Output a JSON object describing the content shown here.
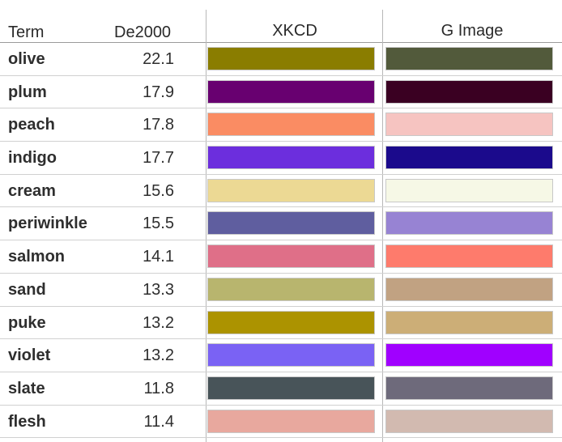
{
  "headers": {
    "term": "Term",
    "de2000": "De2000",
    "xkcd": "XKCD",
    "g_image": "G Image"
  },
  "rows": [
    {
      "term": "olive",
      "de2000": "22.1",
      "xkcd_color": "#8a7d00",
      "g_image_color": "#525a3b"
    },
    {
      "term": "plum",
      "de2000": "17.9",
      "xkcd_color": "#680070",
      "g_image_color": "#3a0022"
    },
    {
      "term": "peach",
      "de2000": "17.8",
      "xkcd_color": "#fa8c63",
      "g_image_color": "#f6c4c1"
    },
    {
      "term": "indigo",
      "de2000": "17.7",
      "xkcd_color": "#6c2edd",
      "g_image_color": "#1b0a8c"
    },
    {
      "term": "cream",
      "de2000": "15.6",
      "xkcd_color": "#ecd994",
      "g_image_color": "#f6f8e6"
    },
    {
      "term": "periwinkle",
      "de2000": "15.5",
      "xkcd_color": "#5f5e9f",
      "g_image_color": "#9783d3"
    },
    {
      "term": "salmon",
      "de2000": "14.1",
      "xkcd_color": "#df6f88",
      "g_image_color": "#fe7b6c"
    },
    {
      "term": "sand",
      "de2000": "13.3",
      "xkcd_color": "#b8b56e",
      "g_image_color": "#c1a282"
    },
    {
      "term": "puke",
      "de2000": "13.2",
      "xkcd_color": "#ac9300",
      "g_image_color": "#ccae77"
    },
    {
      "term": "violet",
      "de2000": "13.2",
      "xkcd_color": "#7a62f4",
      "g_image_color": "#a000ff"
    },
    {
      "term": "slate",
      "de2000": "11.8",
      "xkcd_color": "#485459",
      "g_image_color": "#6e6a7b"
    },
    {
      "term": "flesh",
      "de2000": "11.4",
      "xkcd_color": "#e8a89e",
      "g_image_color": "#d2bab0"
    }
  ]
}
